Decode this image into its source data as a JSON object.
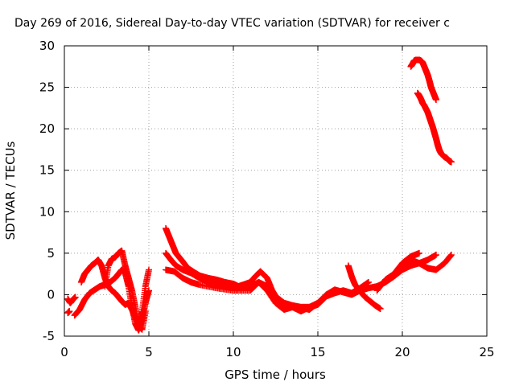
{
  "chart_data": {
    "type": "scatter",
    "title": "Day 269 of 2016, Sidereal Day-to-day VTEC variation (SDTVAR) for receiver c",
    "xlabel": "GPS time / hours",
    "ylabel": "SDTVAR / TECUs",
    "xlim": [
      0,
      25
    ],
    "ylim": [
      -5,
      30
    ],
    "x_ticks": [
      0,
      5,
      10,
      15,
      20,
      25
    ],
    "y_ticks": [
      -5,
      0,
      5,
      10,
      15,
      20,
      25,
      30
    ],
    "grid": true,
    "marker": "+",
    "marker_color": "#ff0000",
    "series": [
      {
        "x": [
          0.2,
          0.35,
          0.5,
          0.65
        ],
        "y": [
          -0.5,
          -1.0,
          -0.6,
          -0.3
        ]
      },
      {
        "x": [
          0.2,
          0.3
        ],
        "y": [
          -2.2,
          -2.0
        ]
      },
      {
        "x": [
          0.6,
          0.9,
          1.2,
          1.5,
          1.8,
          2.1,
          2.4,
          2.7,
          3.0,
          3.2,
          3.4,
          3.6,
          3.8,
          4.0,
          4.2,
          4.4,
          4.6,
          4.8,
          5.0
        ],
        "y": [
          -2.5,
          -1.8,
          -0.6,
          0.2,
          0.6,
          1.0,
          1.2,
          1.5,
          2.0,
          2.5,
          3.0,
          2.6,
          1.0,
          -1.5,
          -3.5,
          -4.3,
          -3.0,
          -1.0,
          0.5
        ]
      },
      {
        "x": [
          1.0,
          1.2,
          1.4,
          1.6,
          1.8,
          2.0,
          2.2,
          2.4,
          2.6,
          2.8,
          3.0,
          3.2,
          3.4,
          3.6,
          3.8,
          4.0,
          4.2,
          4.4,
          4.6,
          4.8,
          5.0
        ],
        "y": [
          1.5,
          2.5,
          3.0,
          3.5,
          3.8,
          4.2,
          3.5,
          2.0,
          1.0,
          0.5,
          0.2,
          -0.3,
          -0.8,
          -1.2,
          -1.0,
          -1.8,
          -2.8,
          -3.5,
          -2.0,
          1.0,
          3.0
        ]
      },
      {
        "x": [
          2.4,
          2.6,
          2.8,
          3.0,
          3.2,
          3.4,
          3.6,
          3.8,
          4.0,
          4.2,
          4.4,
          4.6,
          4.8
        ],
        "y": [
          1.0,
          3.5,
          4.3,
          4.5,
          5.0,
          5.3,
          3.5,
          2.0,
          0.5,
          -1.5,
          -3.8,
          -4.2,
          -2.0
        ]
      },
      {
        "x": [
          6.0,
          6.2,
          6.4,
          6.6,
          6.8,
          7.0,
          7.3,
          7.6,
          8.0,
          8.5,
          9.0,
          9.5,
          10.0,
          10.3,
          10.6,
          11.0,
          11.3,
          11.6,
          12.0,
          12.3,
          12.6,
          13.0,
          13.5,
          14.0,
          14.5,
          15.0,
          15.5,
          16.0,
          16.5,
          17.0,
          17.5,
          18.0,
          18.5,
          19.0,
          19.5,
          20.0,
          20.5,
          21.0,
          21.5,
          22.0,
          22.5,
          22.9
        ],
        "y": [
          8.0,
          7.0,
          6.0,
          5.0,
          4.5,
          4.0,
          3.2,
          2.8,
          2.3,
          2.0,
          1.8,
          1.5,
          1.3,
          1.0,
          1.2,
          1.5,
          2.2,
          2.8,
          2.0,
          0.5,
          -0.5,
          -1.2,
          -1.5,
          -1.6,
          -1.8,
          -1.0,
          0.0,
          0.6,
          0.3,
          0.0,
          0.5,
          0.8,
          1.0,
          1.5,
          2.2,
          3.0,
          3.5,
          3.8,
          3.2,
          3.0,
          3.8,
          4.8
        ]
      },
      {
        "x": [
          6.0,
          6.3,
          6.6,
          7.0,
          7.5,
          8.0,
          8.5,
          9.0,
          9.5,
          10.0,
          10.5,
          11.0,
          11.5,
          12.0,
          12.5,
          13.0,
          13.5,
          14.0,
          14.5,
          15.0,
          15.5,
          16.0,
          16.5,
          17.0,
          17.5,
          18.0
        ],
        "y": [
          5.0,
          4.2,
          3.5,
          3.0,
          2.6,
          2.0,
          1.5,
          1.2,
          1.0,
          0.8,
          0.8,
          1.0,
          1.5,
          1.0,
          -0.2,
          -1.0,
          -1.3,
          -1.5,
          -1.5,
          -1.2,
          -0.2,
          0.2,
          0.5,
          0.2,
          0.8,
          1.5
        ]
      },
      {
        "x": [
          6.0,
          6.5,
          7.0,
          7.5,
          8.0,
          9.0,
          10.0,
          11.0,
          11.5,
          12.0,
          12.5,
          13.0,
          13.5,
          14.0,
          14.5,
          15.0
        ],
        "y": [
          3.0,
          2.8,
          2.0,
          1.5,
          1.2,
          0.8,
          0.5,
          0.5,
          1.5,
          0.5,
          -1.0,
          -1.8,
          -1.5,
          -2.0,
          -1.5,
          -1.0
        ]
      },
      {
        "x": [
          16.8,
          17.0,
          17.2,
          17.5,
          17.8,
          18.1,
          18.4,
          18.7
        ],
        "y": [
          3.5,
          2.2,
          1.2,
          0.4,
          -0.3,
          -0.8,
          -1.3,
          -1.7
        ]
      },
      {
        "x": [
          18.5,
          19.0,
          19.5,
          20.0,
          20.5,
          21.0,
          21.5,
          22.0
        ],
        "y": [
          0.5,
          1.8,
          2.5,
          3.5,
          4.2,
          3.8,
          4.2,
          4.8
        ]
      },
      {
        "x": [
          19.5,
          20.0,
          20.5,
          21.0
        ],
        "y": [
          2.5,
          3.8,
          4.6,
          5.0
        ]
      },
      {
        "x": [
          20.5,
          20.6,
          20.7,
          20.8,
          20.9,
          21.0,
          21.1,
          21.2,
          21.3,
          21.4,
          21.5,
          21.6,
          21.7,
          21.8,
          21.9,
          22.0
        ],
        "y": [
          27.5,
          27.8,
          28.2,
          28.3,
          28.3,
          28.3,
          28.2,
          28.0,
          27.5,
          27.0,
          26.5,
          25.8,
          25.0,
          24.5,
          24.0,
          23.5
        ]
      },
      {
        "x": [
          20.9,
          21.0,
          21.1,
          21.2,
          21.3,
          21.4,
          21.5,
          21.6,
          21.7,
          21.8,
          21.9,
          22.0,
          22.1,
          22.2,
          22.3,
          22.4,
          22.5,
          22.6,
          22.7,
          22.8,
          22.9
        ],
        "y": [
          24.3,
          24.0,
          23.6,
          23.1,
          22.8,
          22.4,
          22.0,
          21.4,
          20.8,
          20.2,
          19.5,
          18.8,
          18.0,
          17.4,
          17.0,
          16.8,
          16.6,
          16.5,
          16.3,
          16.1,
          16.0
        ]
      }
    ]
  }
}
